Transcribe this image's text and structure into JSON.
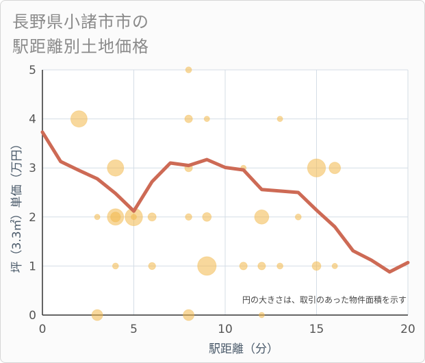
{
  "chart_data": {
    "type": "scatter",
    "title_lines": [
      "長野県小諸市市の",
      "駅距離別土地価格"
    ],
    "xlabel": "駅距離（分）",
    "ylabel": "坪（3.3㎡）単価（万円）",
    "xlim": [
      0,
      20
    ],
    "ylim": [
      0,
      5
    ],
    "xticks": [
      "0",
      "5",
      "10",
      "15",
      "20"
    ],
    "yticks": [
      "0",
      "1",
      "2",
      "3",
      "4",
      "5"
    ],
    "grid": true,
    "annotation": "円の大きさは、取引のあった物件面積を示す",
    "colors": {
      "bubble": "#f2b84b",
      "line": "#cd6a55"
    },
    "bubbles": [
      {
        "x": 2,
        "y": 4.0,
        "size": 3.0
      },
      {
        "x": 3,
        "y": 2.0,
        "size": 1.0
      },
      {
        "x": 3,
        "y": 0.0,
        "size": 2.0
      },
      {
        "x": 4,
        "y": 3.0,
        "size": 3.0
      },
      {
        "x": 4,
        "y": 2.0,
        "size": 3.0
      },
      {
        "x": 4,
        "y": 2.0,
        "size": 1.8
      },
      {
        "x": 4,
        "y": 1.0,
        "size": 1.1
      },
      {
        "x": 5,
        "y": 2.0,
        "size": 3.2
      },
      {
        "x": 5,
        "y": 2.0,
        "size": 1.0
      },
      {
        "x": 6,
        "y": 2.0,
        "size": 1.5
      },
      {
        "x": 6,
        "y": 1.0,
        "size": 1.3
      },
      {
        "x": 8,
        "y": 5.0,
        "size": 1.1
      },
      {
        "x": 8,
        "y": 4.0,
        "size": 1.4
      },
      {
        "x": 8,
        "y": 3.0,
        "size": 1.4
      },
      {
        "x": 8,
        "y": 2.0,
        "size": 1.2
      },
      {
        "x": 8,
        "y": 0.0,
        "size": 2.0
      },
      {
        "x": 9,
        "y": 4.0,
        "size": 1.0
      },
      {
        "x": 9,
        "y": 2.0,
        "size": 1.6
      },
      {
        "x": 9,
        "y": 1.0,
        "size": 3.4
      },
      {
        "x": 11,
        "y": 3.0,
        "size": 1.0
      },
      {
        "x": 11,
        "y": 1.0,
        "size": 1.4
      },
      {
        "x": 12,
        "y": 2.0,
        "size": 2.6
      },
      {
        "x": 12,
        "y": 1.0,
        "size": 1.4
      },
      {
        "x": 12,
        "y": 0.0,
        "size": 1.0
      },
      {
        "x": 13,
        "y": 4.0,
        "size": 1.0
      },
      {
        "x": 13,
        "y": 1.0,
        "size": 1.1
      },
      {
        "x": 14,
        "y": 2.0,
        "size": 1.1
      },
      {
        "x": 15,
        "y": 3.0,
        "size": 3.3
      },
      {
        "x": 15,
        "y": 1.0,
        "size": 1.6
      },
      {
        "x": 16,
        "y": 3.0,
        "size": 2.1
      },
      {
        "x": 16,
        "y": 1.0,
        "size": 1.0
      }
    ],
    "trend": {
      "x": [
        0,
        1,
        2,
        3,
        4,
        5,
        6,
        7,
        8,
        9,
        10,
        11,
        12,
        13,
        14,
        15,
        16,
        17,
        18,
        19,
        20
      ],
      "y": [
        3.73,
        3.13,
        2.95,
        2.78,
        2.48,
        2.12,
        2.72,
        3.1,
        3.05,
        3.17,
        3.01,
        2.96,
        2.56,
        2.53,
        2.5,
        2.14,
        1.8,
        1.31,
        1.12,
        0.88,
        1.07
      ]
    }
  }
}
